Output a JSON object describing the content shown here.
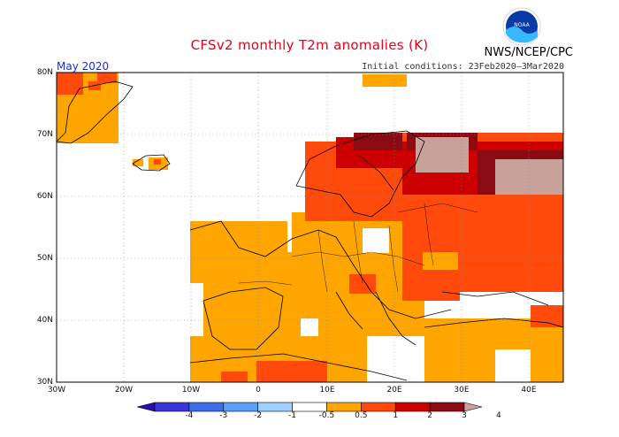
{
  "header": {
    "title": "CFSv2 monthly T2m anomalies (K)",
    "agency": "NWS/NCEP/CPC",
    "logo_text": "NOAA",
    "period": "May 2020",
    "initial_conditions": "Initial conditions: 23Feb2020–3Mar2020"
  },
  "axes": {
    "lat_labels": [
      "80N",
      "70N",
      "60N",
      "50N",
      "40N",
      "30N"
    ],
    "lon_labels": [
      "30W",
      "20W",
      "10W",
      "0",
      "10E",
      "20E",
      "30E",
      "40E"
    ]
  },
  "colorbar": {
    "labels": [
      "-4",
      "-3",
      "-2",
      "-1",
      "-0.5",
      "0.5",
      "1",
      "2",
      "3",
      "4"
    ],
    "colors": [
      "#2a0fb0",
      "#3a35d8",
      "#3d6ee8",
      "#5aa0f5",
      "#9ed0ff",
      "#ffffff",
      "#ffa500",
      "#ff4a0c",
      "#cc0000",
      "#8c0a12",
      "#c8a29a"
    ]
  },
  "colors": {
    "orange": "#ffa500",
    "red_orange": "#ff4a0c",
    "red": "#cc0000",
    "dark_red": "#8c0a12",
    "brown_pink": "#c8a29a",
    "title_red": "#e8001c",
    "period_blue": "#1a2bd6"
  }
}
